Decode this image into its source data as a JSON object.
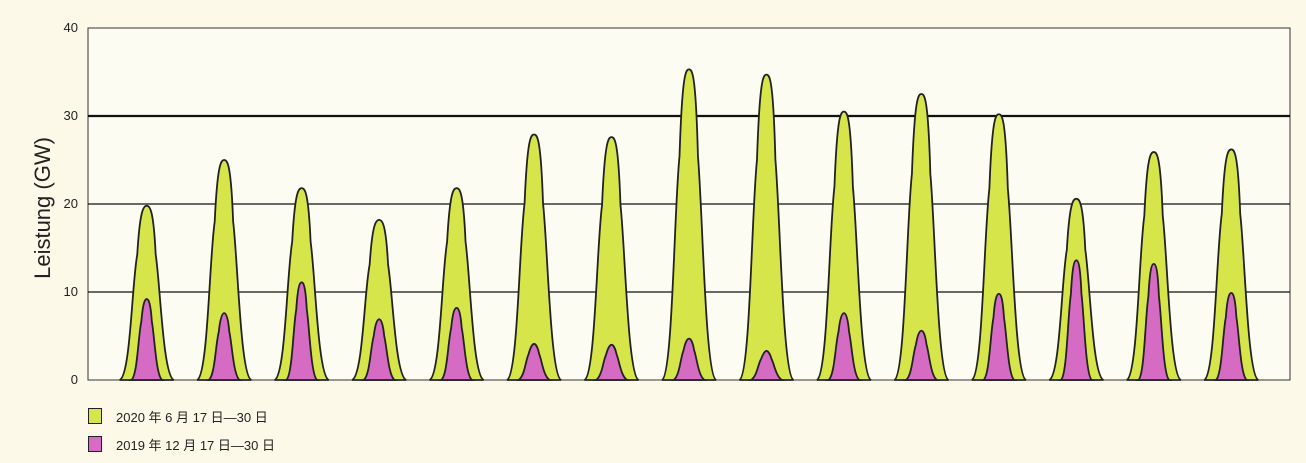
{
  "chart_data": {
    "type": "area",
    "ylabel": "Leistung (GW)",
    "ylim": [
      0,
      40
    ],
    "yticks": [
      0,
      10,
      20,
      30,
      40
    ],
    "grid": "horizontal",
    "legend_position": "bottom-left",
    "days": 14,
    "series": [
      {
        "name": "2020 年 6 月 17 日—30 日",
        "color": "#d6e64a",
        "values": [
          19.8,
          25.0,
          21.8,
          18.2,
          21.8,
          27.9,
          27.6,
          35.3,
          34.7,
          30.5,
          32.5,
          30.2,
          20.6,
          25.9,
          26.2
        ]
      },
      {
        "name": "2019 年 12 月 17 日—30 日",
        "color": "#d66bc4",
        "values": [
          9.2,
          7.6,
          11.1,
          6.9,
          8.2,
          4.1,
          4.0,
          4.7,
          3.3,
          7.6,
          5.6,
          9.8,
          13.6,
          13.2,
          9.9
        ]
      }
    ],
    "reference_line": 30
  }
}
